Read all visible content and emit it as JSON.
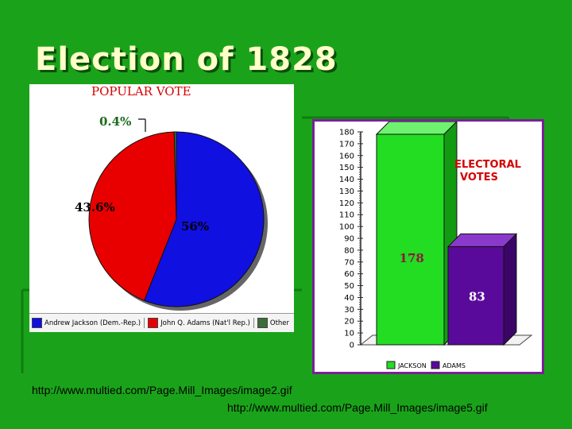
{
  "slide": {
    "title": "Election of 1828",
    "sources": [
      "http://www.multied.com/Page.Mill_Images/image2.gif",
      "http://www.multied.com/Page.Mill_Images/image5.gif"
    ]
  },
  "colors": {
    "background": "#1aa31a",
    "jackson_pie": "#1010e0",
    "adams_pie": "#e80000",
    "jackson_bar": "#22dd22",
    "adams_bar": "#5a0a9a",
    "panel_border": "#7a1f9a"
  },
  "chart_data": [
    {
      "type": "pie",
      "title": "POPULAR VOTE",
      "slices": [
        {
          "name": "Andrew Jackson (Dem.-Rep.)",
          "value": 56,
          "label": "56%",
          "color": "#1010e0"
        },
        {
          "name": "John Q. Adams (Nat'l Rep.)",
          "value": 43.6,
          "label": "43.6%",
          "color": "#e80000"
        },
        {
          "name": "Other",
          "value": 0.4,
          "label": "0.4%",
          "color": "#3a6e3a"
        }
      ],
      "legend": [
        "Andrew Jackson (Dem.-Rep.)",
        "John Q. Adams (Nat'l Rep.)",
        "Other"
      ],
      "legend_position": "bottom"
    },
    {
      "type": "bar",
      "title": "ELECTORAL VOTES",
      "categories": [
        "JACKSON",
        "ADAMS"
      ],
      "values": [
        178,
        83
      ],
      "value_labels": [
        "178",
        "83"
      ],
      "ylim": [
        0,
        180
      ],
      "yticks": [
        "0",
        "10",
        "20",
        "30",
        "40",
        "50",
        "60",
        "70",
        "80",
        "90",
        "100",
        "110",
        "120",
        "130",
        "140",
        "150",
        "160",
        "170",
        "180"
      ],
      "legend_position": "bottom",
      "bar_colors": [
        "#22dd22",
        "#5a0a9a"
      ]
    }
  ]
}
